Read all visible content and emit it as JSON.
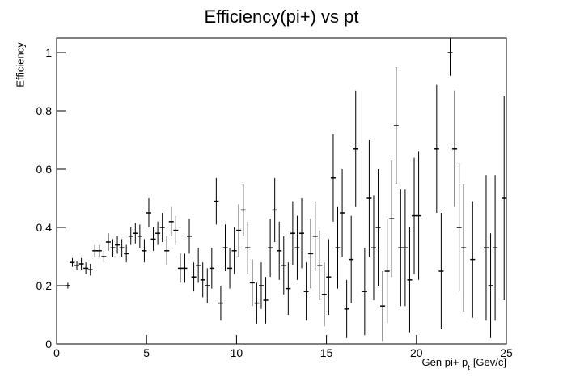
{
  "chart_data": {
    "type": "errorbar",
    "title": "Efficiency(pi+) vs pt",
    "xlabel": "Gen pi+ p",
    "xlabel_subscript": "t",
    "xlabel_suffix": "[Gev/c]",
    "ylabel": "Efficiency",
    "xlim": [
      0,
      25
    ],
    "xticks": [
      0,
      5,
      10,
      15,
      20,
      25
    ],
    "ylim": [
      0,
      1.05
    ],
    "yticks": [
      0,
      0.2,
      0.4,
      0.6,
      0.8,
      1
    ],
    "color": "#000000",
    "x": [
      0.625,
      0.875,
      1.125,
      1.375,
      1.625,
      1.875,
      2.125,
      2.375,
      2.625,
      2.875,
      3.125,
      3.375,
      3.625,
      3.875,
      4.125,
      4.375,
      4.625,
      4.875,
      5.125,
      5.375,
      5.625,
      5.875,
      6.125,
      6.375,
      6.625,
      6.875,
      7.125,
      7.375,
      7.625,
      7.875,
      8.125,
      8.375,
      8.625,
      8.875,
      9.125,
      9.375,
      9.625,
      9.875,
      10.125,
      10.375,
      10.625,
      10.875,
      11.125,
      11.375,
      11.625,
      11.875,
      12.125,
      12.375,
      12.625,
      12.875,
      13.125,
      13.375,
      13.625,
      13.875,
      14.125,
      14.375,
      14.625,
      14.875,
      15.125,
      15.375,
      15.625,
      15.875,
      16.125,
      16.375,
      16.625,
      17.125,
      17.375,
      17.625,
      17.875,
      18.125,
      18.375,
      18.625,
      18.875,
      19.125,
      19.375,
      19.625,
      19.875,
      20.125,
      21.125,
      21.375,
      21.875,
      22.125,
      22.375,
      22.625,
      23.125,
      23.875,
      24.125,
      24.375,
      24.875
    ],
    "values": [
      0.2,
      0.28,
      0.27,
      0.275,
      0.26,
      0.255,
      0.32,
      0.32,
      0.3,
      0.35,
      0.33,
      0.34,
      0.33,
      0.31,
      0.37,
      0.38,
      0.37,
      0.32,
      0.45,
      0.36,
      0.38,
      0.4,
      0.32,
      0.42,
      0.39,
      0.26,
      0.26,
      0.37,
      0.23,
      0.27,
      0.22,
      0.2,
      0.26,
      0.49,
      0.14,
      0.33,
      0.26,
      0.32,
      0.39,
      0.46,
      0.33,
      0.21,
      0.14,
      0.2,
      0.15,
      0.33,
      0.46,
      0.32,
      0.27,
      0.19,
      0.38,
      0.33,
      0.38,
      0.18,
      0.31,
      0.37,
      0.27,
      0.17,
      0.23,
      0.57,
      0.33,
      0.45,
      0.12,
      0.29,
      0.67,
      0.18,
      0.5,
      0.33,
      0.4,
      0.13,
      0.25,
      0.43,
      0.75,
      0.33,
      0.33,
      0.22,
      0.44,
      0.44,
      0.67,
      0.25,
      1,
      0.67,
      0.4,
      0.33,
      0.29,
      0.33,
      0.2,
      0.33,
      0.5
    ],
    "errors": [
      0.01,
      0.015,
      0.015,
      0.02,
      0.02,
      0.02,
      0.02,
      0.02,
      0.02,
      0.03,
      0.03,
      0.03,
      0.03,
      0.03,
      0.03,
      0.035,
      0.04,
      0.04,
      0.05,
      0.04,
      0.04,
      0.05,
      0.05,
      0.05,
      0.05,
      0.05,
      0.05,
      0.06,
      0.05,
      0.06,
      0.06,
      0.06,
      0.07,
      0.08,
      0.06,
      0.08,
      0.07,
      0.08,
      0.09,
      0.09,
      0.09,
      0.08,
      0.07,
      0.08,
      0.08,
      0.1,
      0.11,
      0.1,
      0.1,
      0.09,
      0.11,
      0.11,
      0.12,
      0.1,
      0.12,
      0.12,
      0.12,
      0.11,
      0.13,
      0.15,
      0.14,
      0.15,
      0.1,
      0.15,
      0.2,
      0.15,
      0.2,
      0.18,
      0.2,
      0.12,
      0.18,
      0.2,
      0.2,
      0.2,
      0.2,
      0.18,
      0.2,
      0.22,
      0.22,
      0.2,
      0.08,
      0.2,
      0.22,
      0.22,
      0.2,
      0.25,
      0.18,
      0.25,
      0.35
    ]
  }
}
